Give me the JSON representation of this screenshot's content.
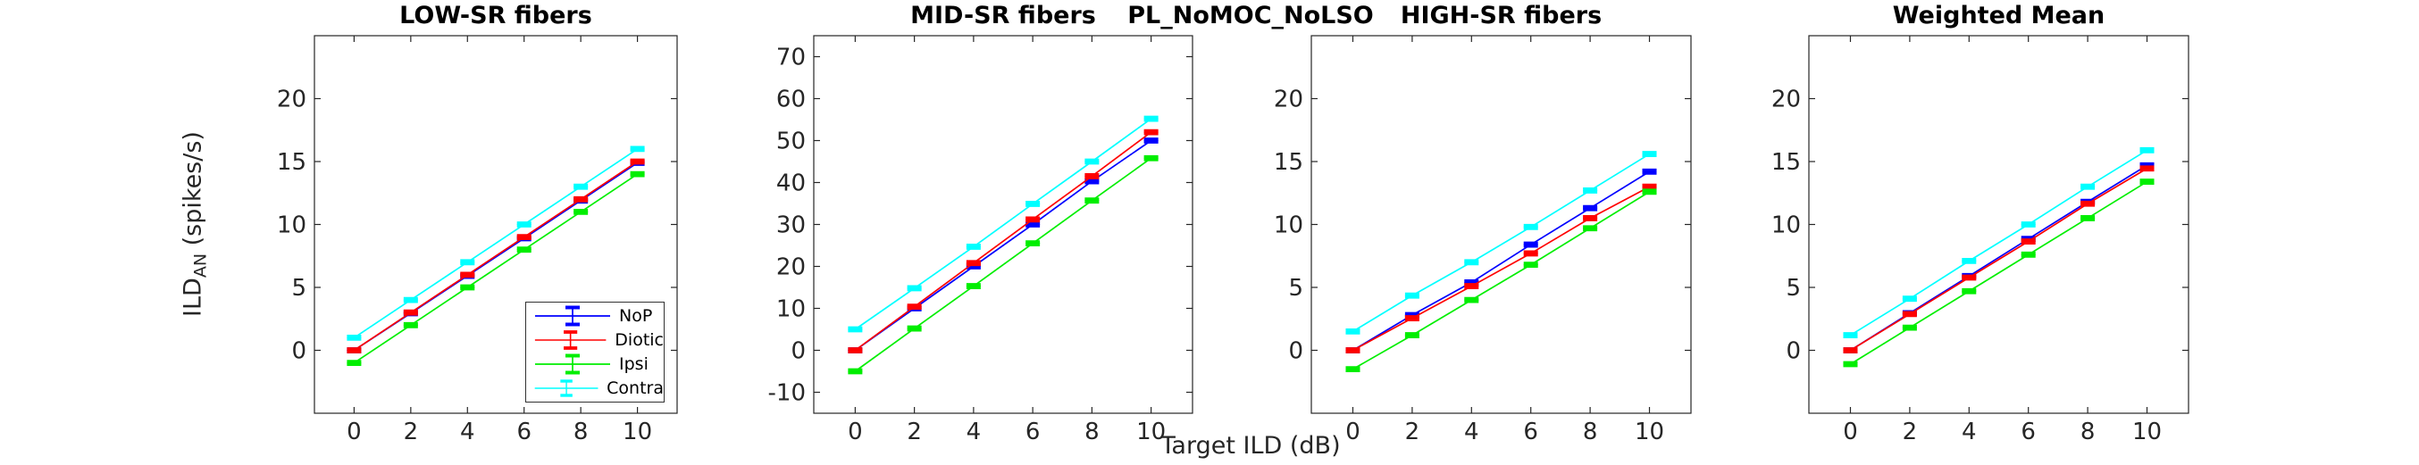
{
  "figure": {
    "suptitle": "PL_NoMOC_NoLSO",
    "xlabel": "Target ILD (dB)",
    "ylabel_main": "ILD",
    "ylabel_sub": "AN",
    "ylabel_rest": " (spikes/s)"
  },
  "colors": {
    "axis": "#262626",
    "nop": "#0000ff",
    "diotic": "#ff0000",
    "ipsi": "#00ee00",
    "contra": "#00ffff"
  },
  "legend": {
    "items": [
      {
        "label": "NoP",
        "color": "#0000ff"
      },
      {
        "label": "Diotic",
        "color": "#ff0000"
      },
      {
        "label": "Ipsi",
        "color": "#00ee00"
      },
      {
        "label": "Contra",
        "color": "#00ffff"
      }
    ]
  },
  "chart_data": [
    {
      "type": "line",
      "title": "LOW-SR fibers",
      "x": [
        0,
        2,
        4,
        6,
        8,
        10
      ],
      "xticks": [
        0,
        2,
        4,
        6,
        8,
        10
      ],
      "xlim": [
        -1.4,
        11.4
      ],
      "ylim": [
        -5,
        25
      ],
      "yticks": [
        0,
        5,
        10,
        15,
        20
      ],
      "series": [
        {
          "name": "NoP",
          "color": "#0000ff",
          "values": [
            0,
            2.95,
            5.92,
            8.9,
            11.9,
            14.9
          ],
          "error": 0.1
        },
        {
          "name": "Diotic",
          "color": "#ff0000",
          "values": [
            0,
            3,
            6,
            9,
            12,
            15
          ],
          "error": 0.1
        },
        {
          "name": "Ipsi",
          "color": "#00ee00",
          "values": [
            -1,
            2,
            5,
            8,
            11,
            14
          ],
          "error": 0.1
        },
        {
          "name": "Contra",
          "color": "#00ffff",
          "values": [
            1,
            4,
            7,
            10,
            13,
            16
          ],
          "error": 0.1
        }
      ]
    },
    {
      "type": "line",
      "title": "MID-SR fibers",
      "x": [
        0,
        2,
        4,
        6,
        8,
        10
      ],
      "xticks": [
        0,
        2,
        4,
        6,
        8,
        10
      ],
      "xlim": [
        -1.4,
        11.4
      ],
      "ylim": [
        -15,
        75
      ],
      "yticks": [
        -10,
        0,
        10,
        20,
        30,
        40,
        50,
        60,
        70
      ],
      "series": [
        {
          "name": "NoP",
          "color": "#0000ff",
          "values": [
            0,
            10,
            20,
            30,
            40.3,
            50
          ],
          "error": 0.3
        },
        {
          "name": "Diotic",
          "color": "#ff0000",
          "values": [
            0,
            10.4,
            20.8,
            31.2,
            41.5,
            52
          ],
          "error": 0.3
        },
        {
          "name": "Ipsi",
          "color": "#00ee00",
          "values": [
            -5,
            5.2,
            15.3,
            25.5,
            35.7,
            45.8
          ],
          "error": 0.3
        },
        {
          "name": "Contra",
          "color": "#00ffff",
          "values": [
            5,
            14.8,
            24.7,
            34.9,
            45,
            55.2
          ],
          "error": 0.3
        }
      ]
    },
    {
      "type": "line",
      "title": "HIGH-SR fibers",
      "x": [
        0,
        2,
        4,
        6,
        8,
        10
      ],
      "xticks": [
        0,
        2,
        4,
        6,
        8,
        10
      ],
      "xlim": [
        -1.4,
        11.4
      ],
      "ylim": [
        -5,
        25
      ],
      "yticks": [
        0,
        5,
        10,
        15,
        20
      ],
      "series": [
        {
          "name": "NoP",
          "color": "#0000ff",
          "values": [
            0,
            2.8,
            5.4,
            8.4,
            11.3,
            14.2
          ],
          "error": 0.1
        },
        {
          "name": "Diotic",
          "color": "#ff0000",
          "values": [
            0,
            2.55,
            5.1,
            7.7,
            10.5,
            13.0
          ],
          "error": 0.1
        },
        {
          "name": "Ipsi",
          "color": "#00ee00",
          "values": [
            -1.5,
            1.2,
            4.0,
            6.8,
            9.7,
            12.6
          ],
          "error": 0.1
        },
        {
          "name": "Contra",
          "color": "#00ffff",
          "values": [
            1.5,
            4.35,
            7.0,
            9.8,
            12.7,
            15.6
          ],
          "error": 0.1
        }
      ]
    },
    {
      "type": "line",
      "title": "Weighted Mean",
      "x": [
        0,
        2,
        4,
        6,
        8,
        10
      ],
      "xticks": [
        0,
        2,
        4,
        6,
        8,
        10
      ],
      "xlim": [
        -1.4,
        11.4
      ],
      "ylim": [
        -5,
        25
      ],
      "yticks": [
        0,
        5,
        10,
        15,
        20
      ],
      "series": [
        {
          "name": "NoP",
          "color": "#0000ff",
          "values": [
            0,
            2.95,
            5.9,
            8.85,
            11.8,
            14.7
          ],
          "error": 0.1
        },
        {
          "name": "Diotic",
          "color": "#ff0000",
          "values": [
            0,
            2.88,
            5.78,
            8.65,
            11.65,
            14.45
          ],
          "error": 0.1
        },
        {
          "name": "Ipsi",
          "color": "#00ee00",
          "values": [
            -1.1,
            1.8,
            4.7,
            7.6,
            10.5,
            13.4
          ],
          "error": 0.1
        },
        {
          "name": "Contra",
          "color": "#00ffff",
          "values": [
            1.2,
            4.1,
            7.1,
            10.0,
            13.0,
            15.9
          ],
          "error": 0.1
        }
      ]
    }
  ]
}
